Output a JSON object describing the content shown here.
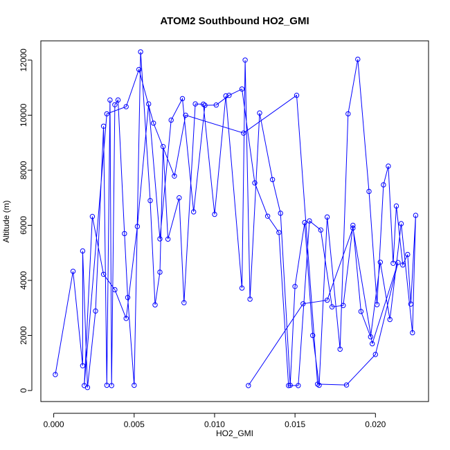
{
  "chart_data": {
    "type": "line",
    "title": "ATOM2 Southbound HO2_GMI",
    "xlabel": "HO2_GMI",
    "ylabel": "Altitude (m)",
    "xlim": [
      -0.0008,
      0.0233
    ],
    "ylim": [
      -400,
      12700
    ],
    "x_ticks": [
      0.0,
      0.005,
      0.01,
      0.015,
      0.02
    ],
    "x_tick_labels": [
      "0.000",
      "0.005",
      "0.010",
      "0.015",
      "0.020"
    ],
    "y_ticks": [
      0,
      2000,
      4000,
      6000,
      8000,
      10000,
      12000
    ],
    "y_tick_labels": [
      "0",
      "2000",
      "4000",
      "6000",
      "8000",
      "10000",
      "12000"
    ],
    "grid": false,
    "legend": false,
    "colors": {
      "series": "#0000ff",
      "axes": "#000000",
      "background": "#ffffff"
    },
    "series": [
      {
        "x": [
          0.0001,
          0.0012,
          0.0018,
          0.0018,
          0.0021,
          0.0026,
          0.0031,
          0.0033,
          0.0035,
          0.0036,
          0.0038,
          0.004,
          0.0044,
          0.0046,
          0.005,
          0.0054,
          0.006,
          0.0063,
          0.0066,
          0.0068,
          0.0071,
          0.0078,
          0.0081,
          0.0088,
          0.0093,
          0.01,
          0.0107,
          0.0117,
          0.0119,
          0.0122,
          0.0128,
          0.0136,
          0.0141,
          0.0147,
          0.015,
          0.0156,
          0.0161,
          0.0165,
          0.017,
          0.0178,
          0.0183,
          0.0189,
          0.0196,
          0.0201,
          0.0205,
          0.0208,
          0.0211,
          0.0213,
          0.0217,
          0.022,
          0.0222,
          0.0225,
          0.0223,
          0.0216,
          0.0209,
          0.0203,
          0.0197,
          0.0191,
          0.0186,
          0.018,
          0.0173,
          0.0166,
          0.0159,
          0.0152,
          0.0146,
          0.014,
          0.0133,
          0.0125,
          0.0117,
          0.0109,
          0.0101,
          0.0094,
          0.0087,
          0.008,
          0.0073,
          0.0066,
          0.0059,
          0.0052,
          0.0045,
          0.0038,
          0.0031,
          0.0024,
          0.0019,
          0.0033,
          0.0045,
          0.0053,
          0.0062,
          0.0075,
          0.0082,
          0.0118,
          0.0151,
          0.0164,
          0.0182,
          0.02,
          0.0214,
          0.0198,
          0.0186,
          0.017,
          0.0155,
          0.0121
        ],
        "y": [
          580,
          4330,
          900,
          5070,
          110,
          2890,
          9600,
          190,
          10550,
          180,
          10380,
          10550,
          5700,
          3380,
          190,
          12300,
          6900,
          3110,
          4300,
          8860,
          5500,
          7000,
          3190,
          10410,
          10400,
          6400,
          10700,
          3720,
          12000,
          3320,
          10080,
          7660,
          6440,
          190,
          3780,
          6100,
          2000,
          190,
          6300,
          1500,
          10050,
          12030,
          7230,
          3120,
          7470,
          8150,
          4620,
          6700,
          4560,
          4940,
          3140,
          6360,
          2100,
          6060,
          2580,
          4660,
          1950,
          2870,
          6000,
          3090,
          3040,
          5830,
          6160,
          180,
          180,
          5740,
          6330,
          7540,
          10950,
          10720,
          10370,
          10360,
          6490,
          10600,
          9820,
          5510,
          10410,
          5960,
          2620,
          3660,
          4220,
          6320,
          180,
          10050,
          10310,
          11660,
          9710,
          7790,
          10000,
          9350,
          10720,
          230,
          200,
          1310,
          4650,
          1700,
          5900,
          3280,
          3150,
          180
        ]
      }
    ]
  }
}
